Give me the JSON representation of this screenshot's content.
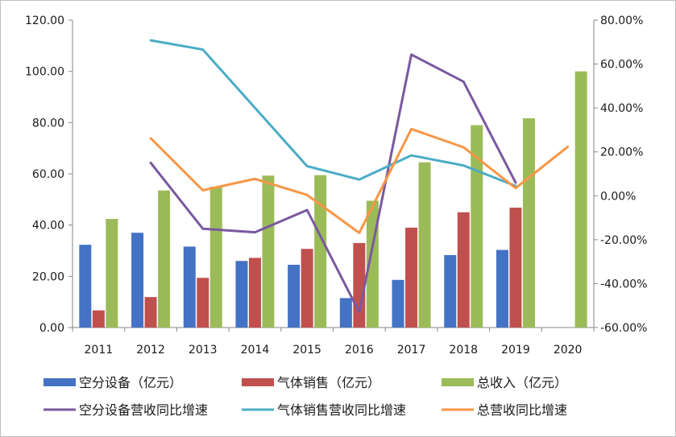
{
  "chart_data": {
    "type": "bar",
    "title": "",
    "categories": [
      "2011",
      "2012",
      "2013",
      "2014",
      "2015",
      "2016",
      "2017",
      "2018",
      "2019",
      "2020"
    ],
    "ylim_left": [
      0,
      120
    ],
    "yticks_left": [
      "0.00",
      "20.00",
      "40.00",
      "60.00",
      "80.00",
      "100.00",
      "120.00"
    ],
    "ylim_right": [
      -60,
      80
    ],
    "yticks_right": [
      "-60.00%",
      "-40.00%",
      "-20.00%",
      "0.00%",
      "20.00%",
      "40.00%",
      "60.00%",
      "80.00%"
    ],
    "grid": false,
    "legend_position": "bottom",
    "bar_series": [
      {
        "name": "空分设备（亿元）",
        "color": "#4472c4",
        "values": [
          32.3,
          37.0,
          31.6,
          26.0,
          24.5,
          11.5,
          18.6,
          28.3,
          30.3,
          null
        ]
      },
      {
        "name": "气体销售（亿元）",
        "color": "#c0504d",
        "values": [
          6.7,
          11.9,
          19.4,
          27.2,
          30.7,
          33.0,
          39.0,
          45.0,
          46.8,
          null
        ]
      },
      {
        "name": "总收入（亿元）",
        "color": "#9bbb59",
        "values": [
          42.4,
          53.5,
          55.0,
          59.3,
          59.5,
          49.5,
          64.5,
          79.0,
          81.7,
          100.0
        ]
      }
    ],
    "line_series": [
      {
        "name": "空分设备营收同比增速",
        "color": "#7a58a0",
        "axis": "right",
        "values": [
          null,
          15.0,
          -15.0,
          -16.6,
          -6.5,
          -53.0,
          64.3,
          52.0,
          6.0,
          null
        ]
      },
      {
        "name": "气体销售营收同比增速",
        "color": "#4bacc6",
        "axis": "right",
        "values": [
          null,
          70.8,
          66.6,
          null,
          13.5,
          7.4,
          18.4,
          13.8,
          4.5,
          null
        ]
      },
      {
        "name": "总营收同比增速",
        "color": "#f79646",
        "axis": "right",
        "values": [
          null,
          26.2,
          2.5,
          7.7,
          0.4,
          -16.9,
          30.4,
          22.1,
          3.5,
          22.3
        ]
      }
    ]
  }
}
